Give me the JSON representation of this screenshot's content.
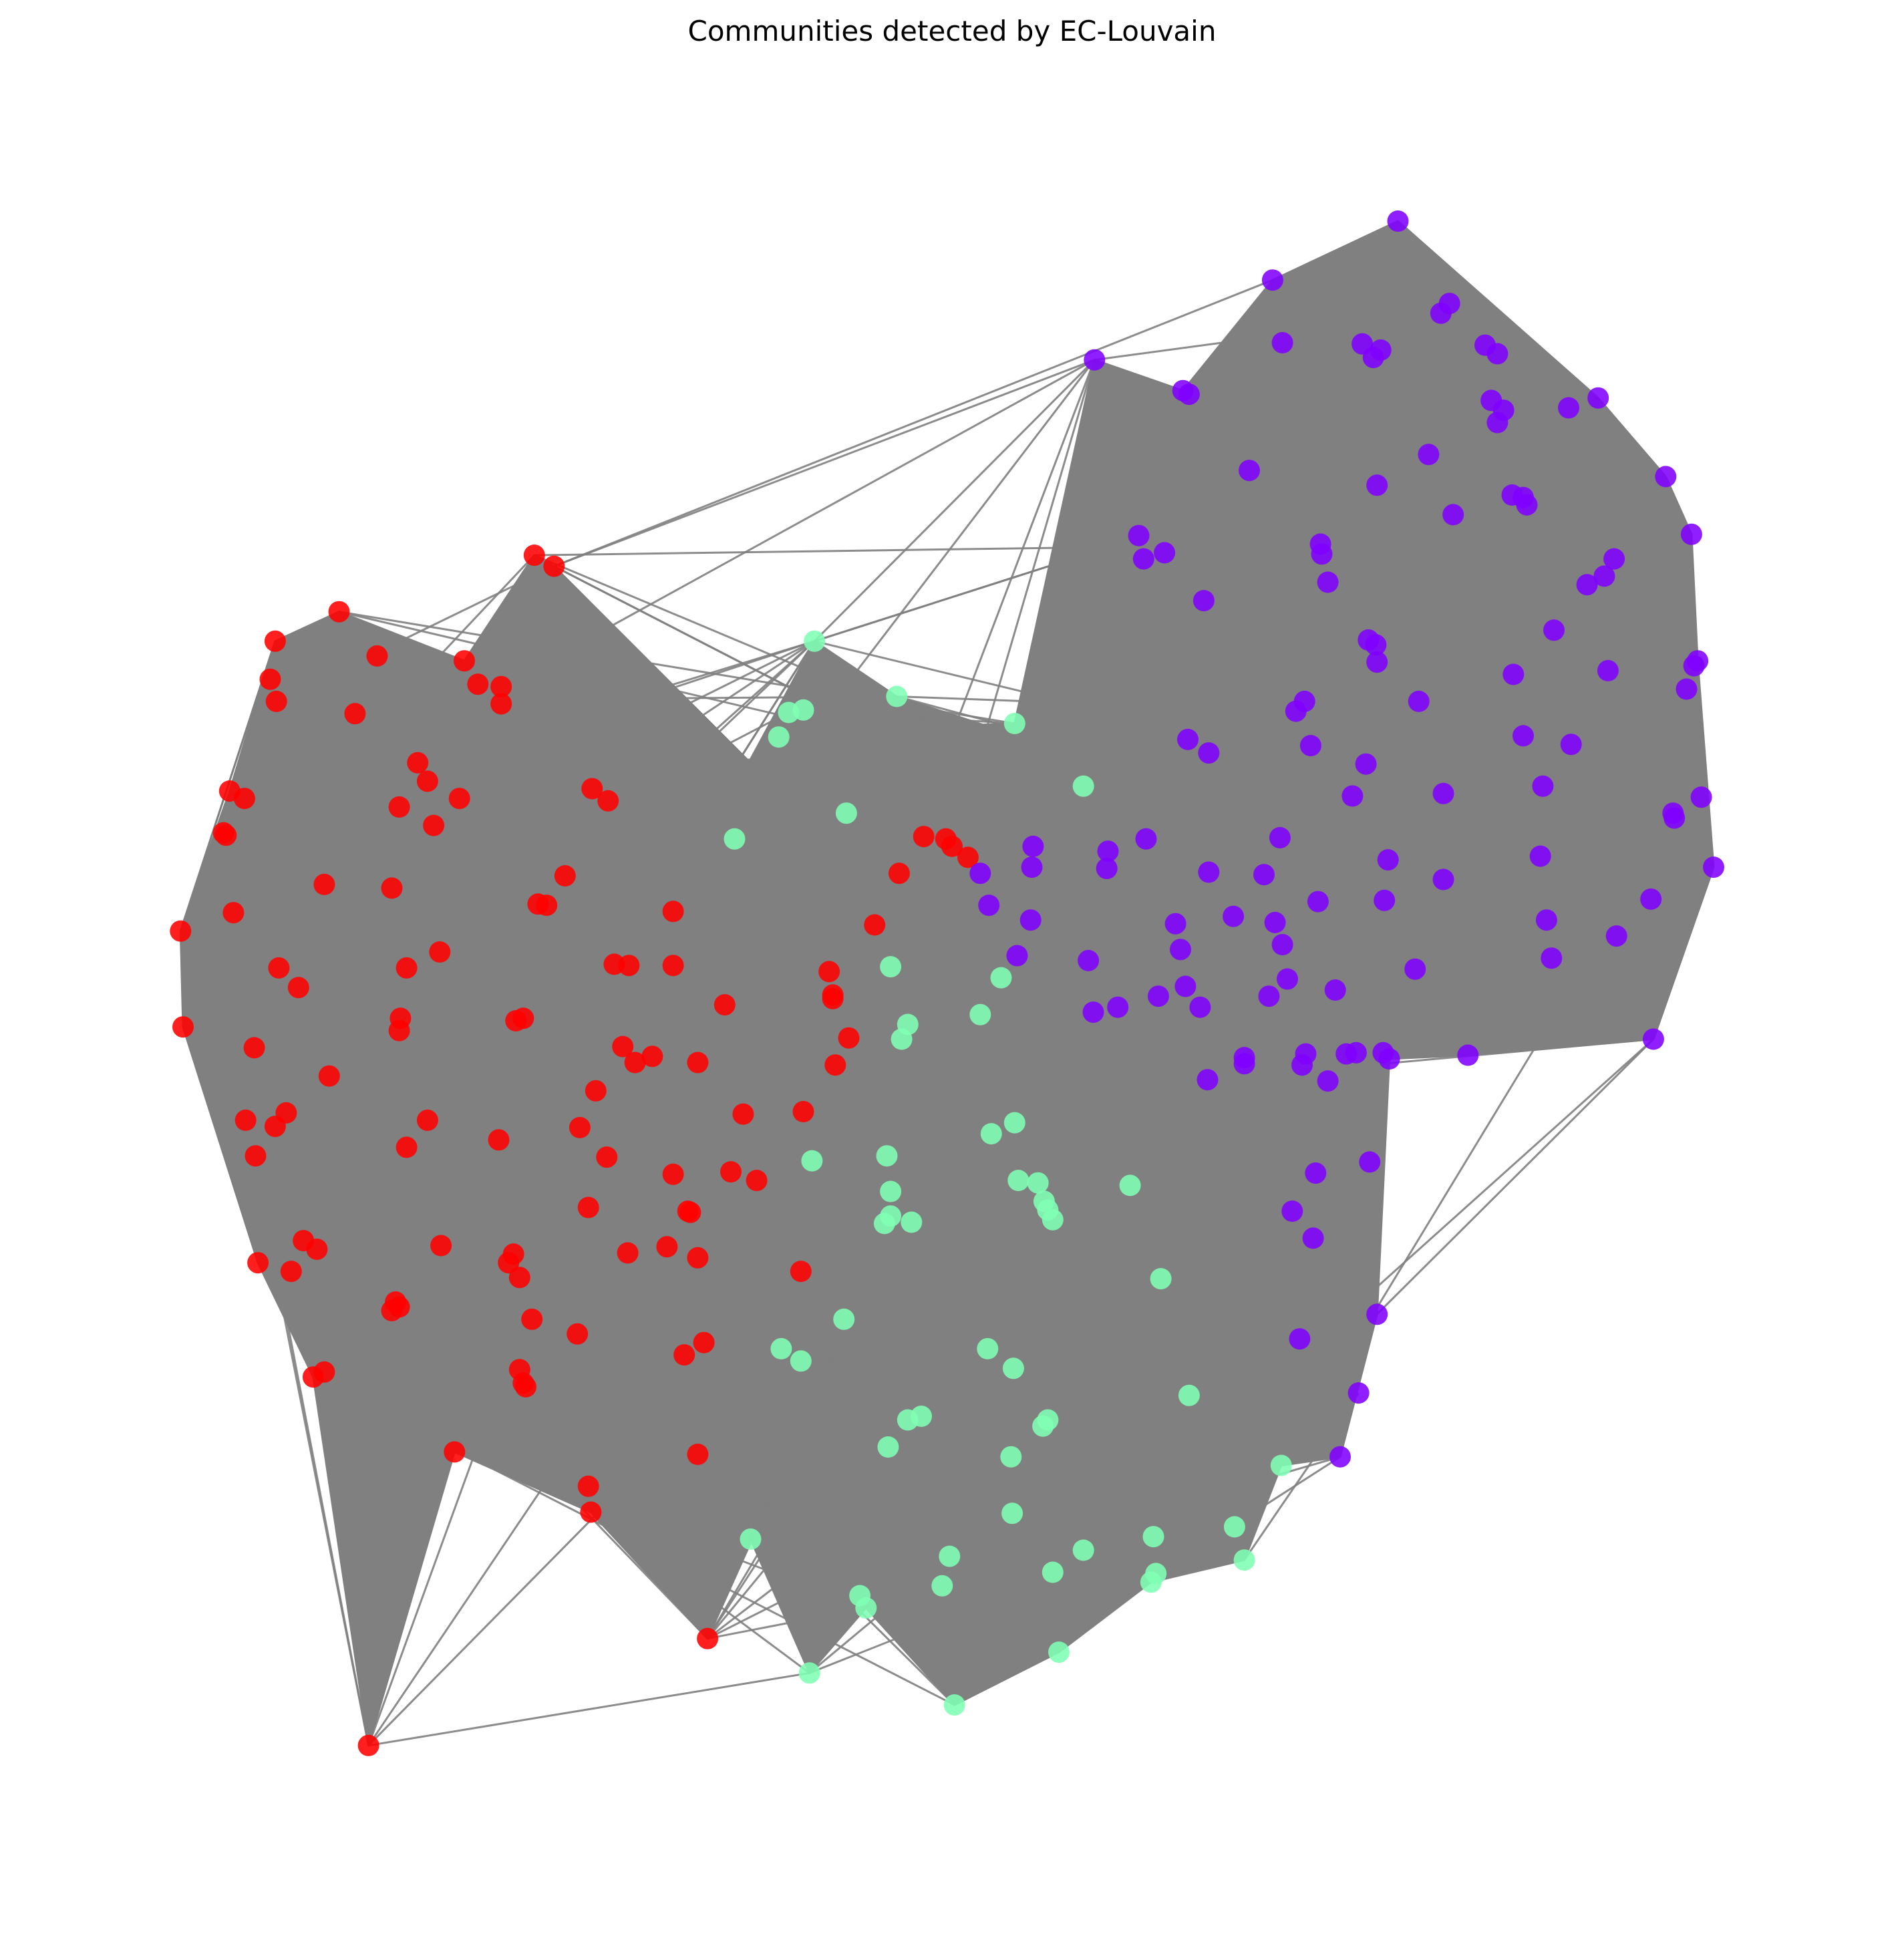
{
  "title": "Communities detected by EC-Louvain",
  "colors": {
    "background": "#ffffff",
    "edge": "#808080",
    "hull_fill": "#808080",
    "community_red": "#ff0000",
    "community_green": "#80ffb4",
    "community_purple": "#8000ff"
  },
  "communities": [
    {
      "id": "red",
      "color": "#ff0000"
    },
    {
      "id": "green",
      "color": "#80ffb4"
    },
    {
      "id": "purple",
      "color": "#8000ff"
    }
  ]
}
